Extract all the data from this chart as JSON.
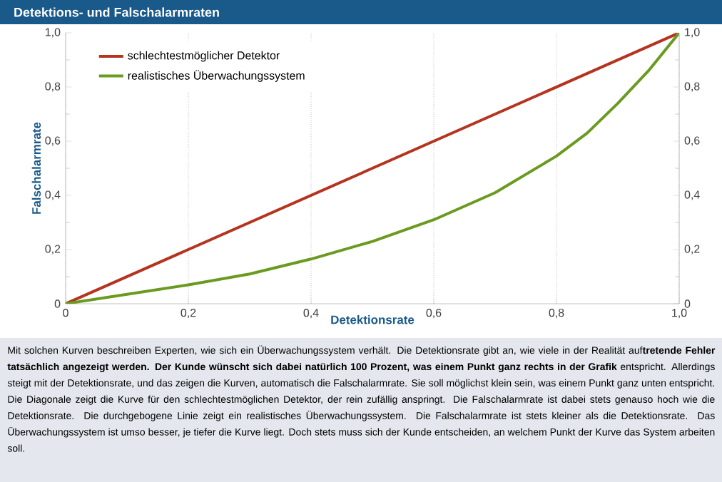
{
  "chart_data": {
    "type": "line",
    "title": "Detektions- und Falschalarmraten",
    "xlabel": "Detektionsrate",
    "ylabel": "Falschalarmrate",
    "series": [
      {
        "name": "schlechtestmöglicher Detektor",
        "color": "#b5341f",
        "x": [
          0,
          1
        ],
        "values": [
          0,
          1
        ]
      },
      {
        "name": "realistisches Überwachungssystem",
        "color": "#6a9a1f",
        "x": [
          0,
          0.1,
          0.2,
          0.3,
          0.4,
          0.5,
          0.6,
          0.7,
          0.8,
          0.85,
          0.9,
          0.95,
          1
        ],
        "values": [
          0,
          0.035,
          0.07,
          0.11,
          0.165,
          0.23,
          0.31,
          0.41,
          0.545,
          0.63,
          0.74,
          0.86,
          1
        ]
      }
    ],
    "xlim": [
      0,
      1
    ],
    "ylim": [
      0,
      1
    ],
    "y2lim": [
      0,
      1
    ],
    "xticks": [
      0,
      {
        "value": 0.2,
        "label": "0,2"
      },
      {
        "value": 0.4,
        "label": "0,4"
      },
      {
        "value": 0.6,
        "label": "0,6"
      },
      {
        "value": 0.8,
        "label": "0,8"
      },
      {
        "value": 1,
        "label": "1,0"
      }
    ],
    "yticks": [
      0,
      {
        "value": 0.2,
        "label": "0,2"
      },
      {
        "value": 0.4,
        "label": "0,4"
      },
      {
        "value": 0.6,
        "label": "0,6"
      },
      {
        "value": 0.8,
        "label": "0,8"
      },
      {
        "value": 1,
        "label": "1,0"
      }
    ],
    "y2ticks": [
      0,
      {
        "value": 0.2,
        "label": "0,2"
      },
      {
        "value": 0.4,
        "label": "0,4"
      },
      {
        "value": 0.6,
        "label": "0,6"
      },
      {
        "value": 0.8,
        "label": "0,8"
      },
      {
        "value": 1,
        "label": "1,0"
      }
    ],
    "grid": "x",
    "legend": "top left",
    "marker": "none",
    "line_style": "solid",
    "annotations": [
      "Mit solchen Kurven beschreiben Experten, wie sich ein Überwachungssystem verhält. Die Detektionsrate gibt an, wie viele in der Realität auf**tretende Fehler tatsächlich angezeigt werden. Der Kunde wünscht sich dabei natürlich 100 Prozent, was einem Punkt ganz rechts in der Grafik** entspricht. Allerdings steigt mit der Detektionsrate, und das zeigen die Kurven, automatisch die Falschalarmrate. Sie soll möglichst klein sein, was einem Punkt ganz unten entspricht. Die Diagonale zeigt die Kurve für den schlechtestmöglichen Detektor, der rein zufällig anspringt. Die Falschalarmrate ist dabei stets genauso hoch wie die Detektionsrate. Die durchgebogene Linie zeigt ein realistisches Überwachungssystem. Die Falschalarmrate ist stets kleiner als die Detektionsrate. Das Überwachungssystem ist umso besser, je tiefer die Kurve liegt. Doch stets muss sich der Kunde entscheiden, an welchem Punkt der Kurve das System arbeiten soll."
    ]
  }
}
